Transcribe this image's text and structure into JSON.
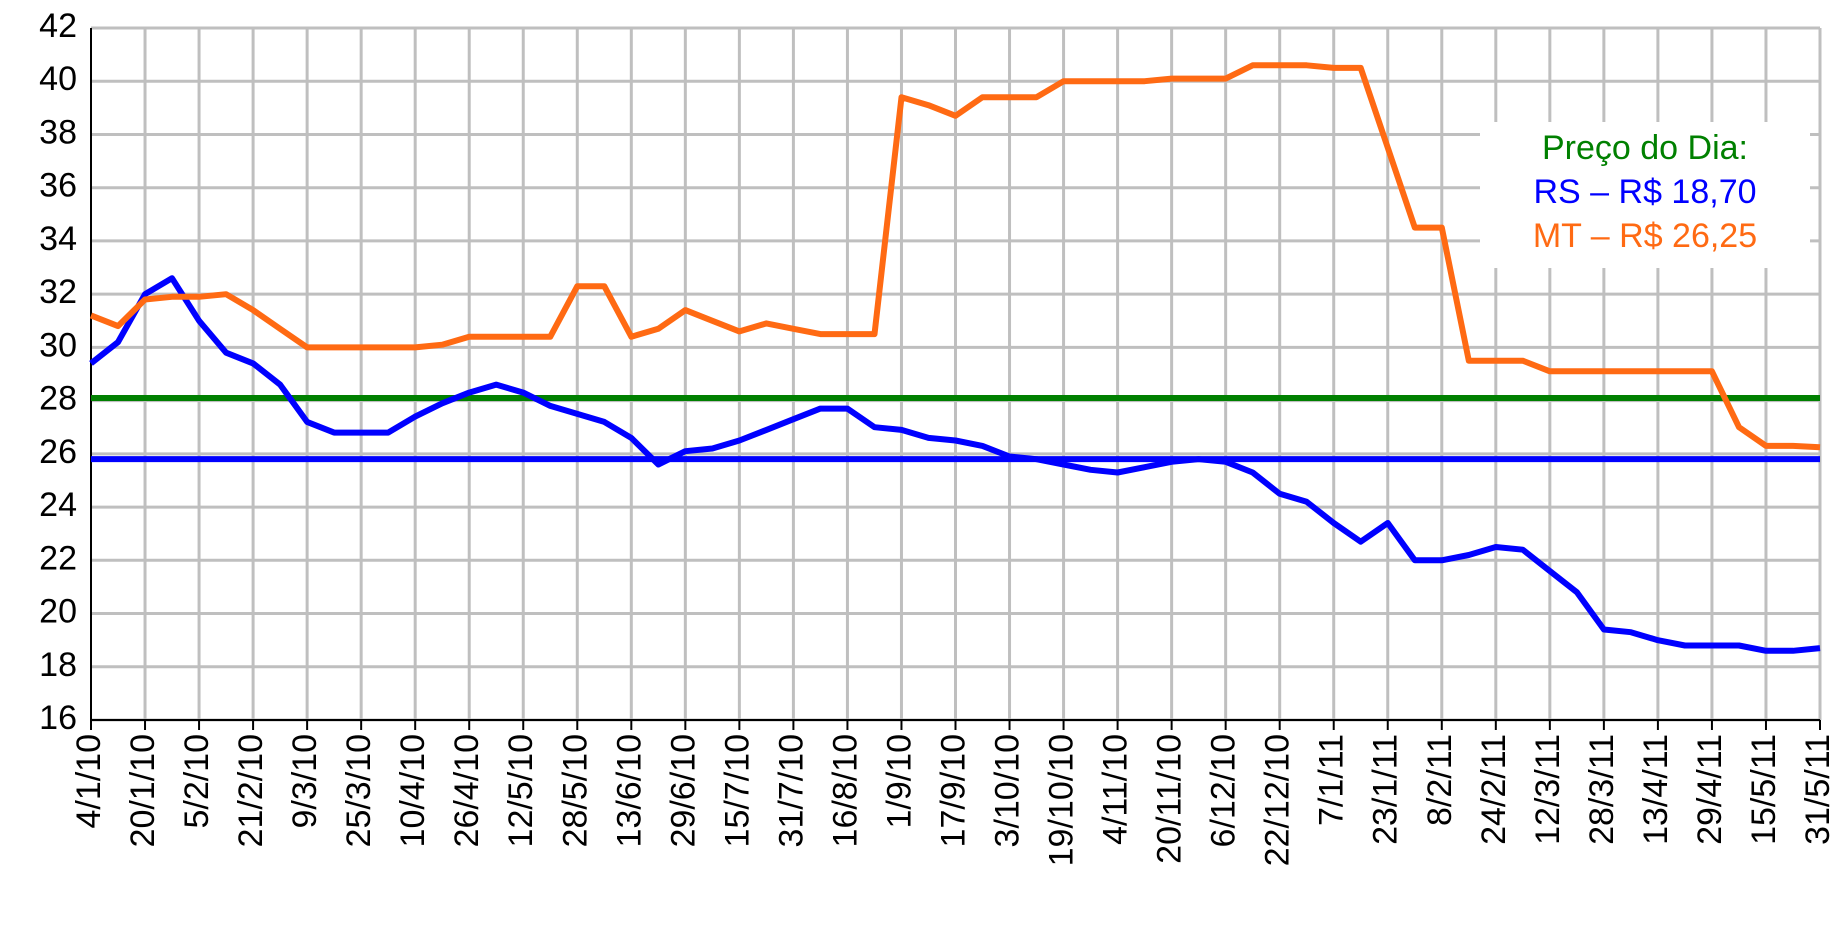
{
  "chart_data": {
    "type": "line",
    "categories": [
      "4/1/10",
      null,
      "20/1/10",
      null,
      "5/2/10",
      null,
      "21/2/10",
      null,
      "9/3/10",
      null,
      "25/3/10",
      null,
      "10/4/10",
      null,
      "26/4/10",
      null,
      "12/5/10",
      null,
      "28/5/10",
      null,
      "13/6/10",
      null,
      "29/6/10",
      null,
      "15/7/10",
      null,
      "31/7/10",
      null,
      "16/8/10",
      null,
      "1/9/10",
      null,
      "17/9/10",
      null,
      "3/10/10",
      null,
      "19/10/10",
      null,
      "4/11/10",
      null,
      "20/11/10",
      null,
      "6/12/10",
      null,
      "22/12/10",
      null,
      "7/1/11",
      null,
      "23/1/11",
      null,
      "8/2/11",
      null,
      "24/2/11",
      null,
      "12/3/11",
      null,
      "28/3/11",
      null,
      "13/4/11",
      null,
      "29/4/11",
      null,
      "15/5/11",
      null,
      "31/5/11"
    ],
    "series": [
      {
        "color": "#0000ff",
        "values": [
          29.4,
          30.2,
          32.0,
          32.6,
          31.0,
          29.8,
          29.4,
          28.6,
          27.2,
          26.8,
          26.8,
          26.8,
          27.4,
          27.9,
          28.3,
          28.6,
          28.3,
          27.8,
          27.5,
          27.2,
          26.6,
          25.6,
          26.1,
          26.2,
          26.5,
          26.9,
          27.3,
          27.7,
          27.7,
          27.0,
          26.9,
          26.6,
          26.5,
          26.3,
          25.9,
          25.8,
          25.6,
          25.4,
          25.3,
          25.5,
          25.7,
          25.8,
          25.7,
          25.3,
          24.5,
          24.2,
          23.4,
          22.7,
          23.4,
          22.0,
          22.0,
          22.2,
          22.5,
          22.4,
          21.6,
          20.8,
          19.4,
          19.3,
          19.0,
          18.8,
          18.8,
          18.8,
          18.6,
          18.6,
          18.7
        ]
      },
      {
        "color": "#ff6a13",
        "values": [
          31.2,
          30.8,
          31.8,
          31.9,
          31.9,
          32.0,
          31.4,
          30.7,
          30.0,
          30.0,
          30.0,
          30.0,
          30.0,
          30.1,
          30.4,
          30.4,
          30.4,
          30.4,
          32.3,
          32.3,
          30.4,
          30.7,
          31.4,
          31.0,
          30.6,
          30.9,
          30.7,
          30.5,
          30.5,
          30.5,
          39.4,
          39.1,
          38.7,
          39.4,
          39.4,
          39.4,
          40.0,
          40.0,
          40.0,
          40.0,
          40.1,
          40.1,
          40.1,
          40.6,
          40.6,
          40.6,
          40.5,
          40.5,
          37.5,
          34.5,
          34.5,
          29.5,
          29.5,
          29.5,
          29.1,
          29.1,
          29.1,
          29.1,
          29.1,
          29.1,
          29.1,
          27.0,
          26.3,
          26.3,
          26.25
        ]
      }
    ],
    "reference_lines": [
      {
        "value": 28.1,
        "color": "#008000"
      },
      {
        "value": 25.8,
        "color": "#0000ff"
      }
    ],
    "annotations": [
      {
        "text": "Preço do Dia:",
        "color": "#008000"
      },
      {
        "text": "RS – R$ 18,70",
        "color": "#0000ff"
      },
      {
        "text": "MT – R$ 26,25",
        "color": "#ff6a13"
      }
    ],
    "ylim": [
      16,
      42
    ],
    "yticks": [
      16,
      18,
      20,
      22,
      24,
      26,
      28,
      30,
      32,
      34,
      36,
      38,
      40,
      42
    ],
    "grid": true
  }
}
